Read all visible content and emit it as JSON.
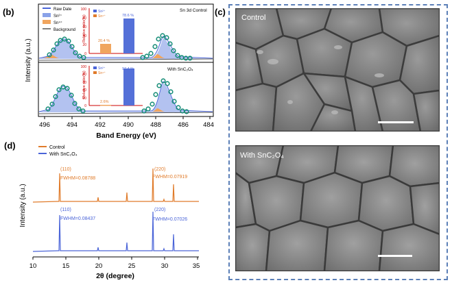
{
  "panel_b": {
    "label": "(b)",
    "header_note": "Sn 3d    Control",
    "legend": [
      "Raw Date",
      "Sn²⁺",
      "Sn⁴⁺",
      "Background"
    ],
    "ylabel": "Intensity (a.u.)",
    "xlabel": "Band Energy (eV)",
    "xticks": [
      "496",
      "494",
      "492",
      "490",
      "488",
      "486",
      "484"
    ],
    "lower_label": "With SnC₂O₄",
    "inset_ylabel": "Relative ratio(%)",
    "inset_yticks": [
      "100",
      "80",
      "60",
      "40",
      "20",
      "0"
    ],
    "inset_legend": [
      "Sn²⁺",
      "Sn⁴⁺"
    ],
    "control_inset_values": [
      "20.4 %",
      "78.6 %"
    ],
    "with_inset_values": [
      "97.4 %",
      "2.6%"
    ]
  },
  "panel_c": {
    "label": "(c)",
    "top_label": "Control",
    "bottom_label": "With SnC₂O₄"
  },
  "panel_d": {
    "label": "(d)",
    "legend": [
      "Control",
      "With SnC₂O₄"
    ],
    "ylabel": "Intensity (a.u.)",
    "xlabel": "2θ (degree)",
    "xticks": [
      "10",
      "15",
      "20",
      "25",
      "30",
      "35"
    ],
    "control_annotations": {
      "peak1": "(110)",
      "fwhm1": "FWHM=0.08788",
      "peak2": "(220)",
      "fwhm2": "FWHM=0.07919"
    },
    "with_annotations": {
      "peak1": "(110)",
      "fwhm1": "FWHM=0.08437",
      "peak2": "(220)",
      "fwhm2": "FWHM=0.07026"
    }
  },
  "colors": {
    "orange": "#e07b2a",
    "blue": "#4a64d8",
    "teal": "#1a8f7a",
    "fill_blue": "#8aa2e8",
    "frame": "#5b7fb7"
  }
}
